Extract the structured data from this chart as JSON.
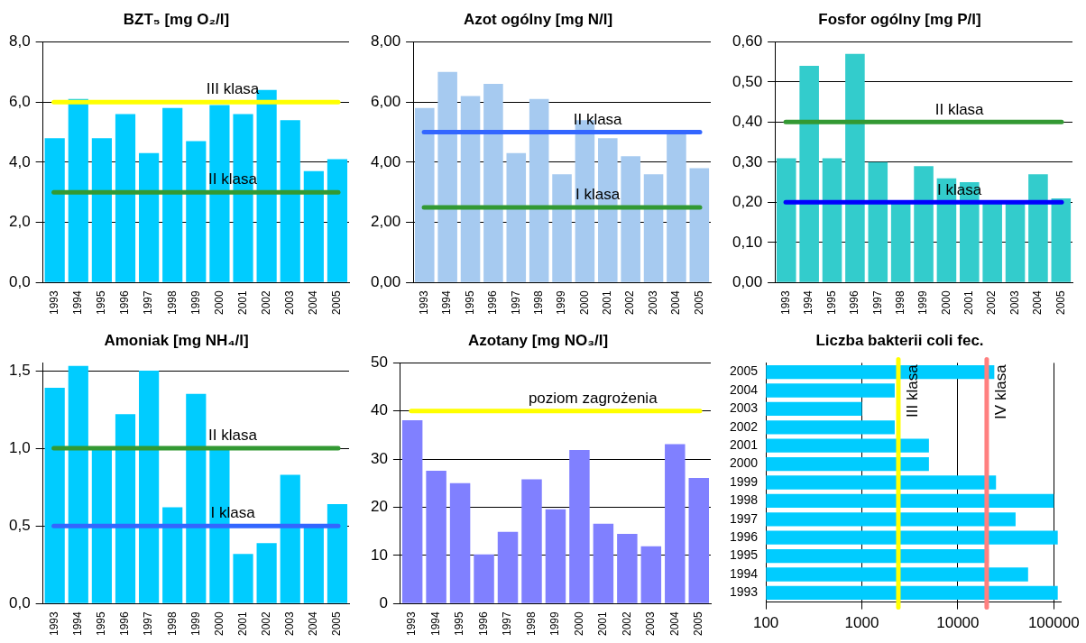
{
  "chart_data": [
    {
      "type": "bar",
      "title": "BZT₅ [mg O₂/l]",
      "categories": [
        "1993",
        "1994",
        "1995",
        "1996",
        "1997",
        "1998",
        "1999",
        "2000",
        "2001",
        "2002",
        "2003",
        "2004",
        "2005"
      ],
      "values": [
        4.8,
        6.1,
        4.8,
        5.6,
        4.3,
        5.8,
        4.7,
        5.9,
        5.6,
        6.4,
        5.4,
        3.7,
        4.1
      ],
      "color": "#00ccff",
      "ylim": [
        0,
        8
      ],
      "yticks": [
        {
          "value": 0,
          "label": "0,0"
        },
        {
          "value": 2,
          "label": "2,0"
        },
        {
          "value": 4,
          "label": "4,0"
        },
        {
          "value": 6,
          "label": "6,0"
        },
        {
          "value": 8,
          "label": "8,0"
        }
      ],
      "grid": "y",
      "ref_lines": [
        {
          "axis": "y",
          "value": 6,
          "label": "III klasa",
          "color": "#ffff00"
        },
        {
          "axis": "y",
          "value": 3,
          "label": "II klasa",
          "color": "#339933"
        }
      ]
    },
    {
      "type": "bar",
      "title": "Azot ogólny [mg N/l]",
      "categories": [
        "1993",
        "1994",
        "1995",
        "1996",
        "1997",
        "1998",
        "1999",
        "2000",
        "2001",
        "2002",
        "2003",
        "2004",
        "2005"
      ],
      "values": [
        5.8,
        7.0,
        6.2,
        6.6,
        4.3,
        6.1,
        3.6,
        5.4,
        4.8,
        4.2,
        3.6,
        5.0,
        3.8
      ],
      "color": "#a6caf0",
      "ylim": [
        0,
        8
      ],
      "yticks": [
        {
          "value": 0,
          "label": "0,00"
        },
        {
          "value": 2,
          "label": "2,00"
        },
        {
          "value": 4,
          "label": "4,00"
        },
        {
          "value": 6,
          "label": "6,00"
        },
        {
          "value": 8,
          "label": "8,00"
        }
      ],
      "grid": "y",
      "ref_lines": [
        {
          "axis": "y",
          "value": 5,
          "label": "II klasa",
          "color": "#3366ff"
        },
        {
          "axis": "y",
          "value": 2.5,
          "label": "I klasa",
          "color": "#339933"
        }
      ]
    },
    {
      "type": "bar",
      "title": "Fosfor ogólny [mg P/l]",
      "categories": [
        "1993",
        "1994",
        "1995",
        "1996",
        "1997",
        "1998",
        "1999",
        "2000",
        "2001",
        "2002",
        "2003",
        "2004",
        "2005"
      ],
      "values": [
        0.31,
        0.54,
        0.31,
        0.57,
        0.3,
        0.2,
        0.29,
        0.26,
        0.25,
        0.2,
        0.2,
        0.27,
        0.21
      ],
      "color": "#33cccc",
      "ylim": [
        0,
        0.6
      ],
      "yticks": [
        {
          "value": 0,
          "label": "0,00"
        },
        {
          "value": 0.1,
          "label": "0,10"
        },
        {
          "value": 0.2,
          "label": "0,20"
        },
        {
          "value": 0.3,
          "label": "0,30"
        },
        {
          "value": 0.4,
          "label": "0,40"
        },
        {
          "value": 0.5,
          "label": "0,50"
        },
        {
          "value": 0.6,
          "label": "0,60"
        }
      ],
      "grid": "y",
      "ref_lines": [
        {
          "axis": "y",
          "value": 0.4,
          "label": "II klasa",
          "color": "#339933"
        },
        {
          "axis": "y",
          "value": 0.2,
          "label": "I klasa",
          "color": "#0000ff"
        }
      ]
    },
    {
      "type": "bar",
      "title": "Amoniak [mg NH₄/l]",
      "categories": [
        "1993",
        "1994",
        "1995",
        "1996",
        "1997",
        "1998",
        "1999",
        "2000",
        "2001",
        "2002",
        "2003",
        "2004",
        "2005"
      ],
      "values": [
        1.39,
        1.53,
        1.0,
        1.22,
        1.5,
        0.62,
        1.35,
        1.0,
        0.32,
        0.39,
        0.83,
        0.5,
        0.64
      ],
      "color": "#00ccff",
      "ylim": [
        0,
        1.55
      ],
      "yticks": [
        {
          "value": 0,
          "label": "0,0"
        },
        {
          "value": 0.5,
          "label": "0,5"
        },
        {
          "value": 1,
          "label": "1,0"
        },
        {
          "value": 1.5,
          "label": "1,5"
        }
      ],
      "grid": "y",
      "ref_lines": [
        {
          "axis": "y",
          "value": 1,
          "label": "II klasa",
          "color": "#339933"
        },
        {
          "axis": "y",
          "value": 0.5,
          "label": "I klasa",
          "color": "#3366ff"
        }
      ]
    },
    {
      "type": "bar",
      "title": "Azotany [mg NO₃/l]",
      "categories": [
        "1993",
        "1994",
        "1995",
        "1996",
        "1997",
        "1998",
        "1999",
        "2000",
        "2001",
        "2002",
        "2003",
        "2004",
        "2005"
      ],
      "values": [
        38.1,
        27.6,
        25.0,
        10.2,
        14.9,
        25.8,
        19.6,
        31.9,
        16.6,
        14.5,
        11.9,
        33.1,
        26.1
      ],
      "color": "#8080ff",
      "ylim": [
        0,
        50
      ],
      "yticks": [
        0,
        10,
        20,
        30,
        40,
        50
      ],
      "grid": "y",
      "ref_lines": [
        {
          "axis": "y",
          "value": 40,
          "label": "poziom zagrożenia",
          "color": "#ffff00"
        }
      ]
    },
    {
      "type": "bar",
      "orientation": "horizontal",
      "log": "x",
      "title": "Liczba bakterii coli fec.",
      "categories": [
        "2005",
        "2004",
        "2003",
        "2002",
        "2001",
        "2000",
        "1999",
        "1998",
        "1997",
        "1996",
        "1995",
        "1994",
        "1993"
      ],
      "values": [
        24000,
        2200,
        1000,
        2200,
        5000,
        5000,
        25000,
        100000,
        40000,
        110000,
        21000,
        54000,
        110000
      ],
      "color": "#00ccff",
      "xlim": [
        100,
        120000
      ],
      "xticks": [
        100,
        1000,
        10000,
        100000
      ],
      "grid": "x",
      "ref_lines": [
        {
          "axis": "x",
          "value": 2400,
          "label": "III klasa",
          "color": "#ffff00"
        },
        {
          "axis": "x",
          "value": 20000,
          "label": "IV klasa",
          "color": "#ff8080"
        }
      ]
    }
  ]
}
